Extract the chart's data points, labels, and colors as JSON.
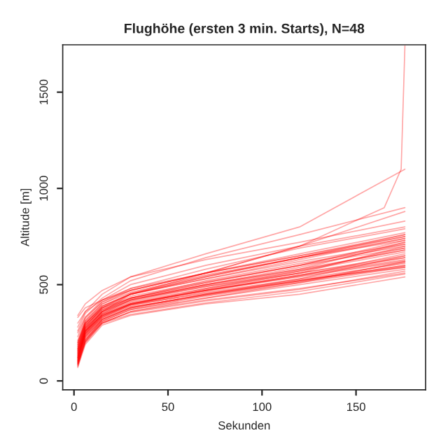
{
  "chart_data": {
    "type": "line",
    "title": "Flughöhe (ersten 3 min. Starts), N=48",
    "xlabel": "Sekunden",
    "ylabel": "Altitude [m]",
    "x": [
      2,
      6,
      15,
      30,
      70,
      120,
      176
    ],
    "xlim": [
      -6,
      187
    ],
    "xticks": [
      0,
      50,
      100,
      150
    ],
    "ylim": [
      -46,
      1746
    ],
    "yticks": [
      0,
      500,
      1000,
      1500
    ],
    "grid": false,
    "legend": false,
    "marker": "none",
    "line_style": "solid",
    "series": [
      {
        "color": "#ff0000",
        "values": [
          80,
          200,
          300,
          360,
          420,
          480,
          560
        ]
      },
      {
        "color": "#ff0000",
        "values": [
          100,
          230,
          320,
          380,
          450,
          520,
          600
        ]
      },
      {
        "color": "#ff0000",
        "values": [
          120,
          250,
          340,
          400,
          470,
          540,
          620
        ]
      },
      {
        "color": "#ff0000",
        "values": [
          90,
          210,
          310,
          370,
          440,
          510,
          590
        ]
      },
      {
        "color": "#ff0000",
        "values": [
          150,
          270,
          360,
          420,
          490,
          560,
          650
        ]
      },
      {
        "color": "#ff0000",
        "values": [
          330,
          380,
          420,
          470,
          560,
          650,
          760
        ]
      },
      {
        "color": "#ff0000",
        "values": [
          340,
          400,
          470,
          540,
          630,
          720,
          830
        ]
      },
      {
        "color": "#ff0000",
        "values": [
          200,
          300,
          380,
          430,
          500,
          580,
          680
        ]
      },
      {
        "color": "#ff0000",
        "values": [
          110,
          240,
          330,
          390,
          460,
          530,
          610
        ]
      },
      {
        "color": "#ff0000",
        "values": [
          70,
          190,
          290,
          340,
          400,
          450,
          540
        ]
      },
      {
        "color": "#ff0000",
        "values": [
          130,
          260,
          350,
          410,
          480,
          560,
          640
        ]
      },
      {
        "color": "#ff0000",
        "values": [
          180,
          290,
          370,
          430,
          520,
          610,
          700
        ]
      },
      {
        "color": "#ff0000",
        "values": [
          95,
          220,
          310,
          370,
          430,
          500,
          580
        ]
      },
      {
        "color": "#ff0000",
        "values": [
          160,
          280,
          380,
          450,
          540,
          640,
          730
        ]
      },
      {
        "color": "#ff0000",
        "values": [
          250,
          330,
          420,
          500,
          600,
          700,
          800
        ]
      },
      {
        "color": "#ff0000",
        "values": [
          140,
          260,
          340,
          400,
          470,
          550,
          630
        ]
      },
      {
        "color": "#ff0000",
        "values": [
          105,
          235,
          325,
          385,
          445,
          515,
          595
        ]
      },
      {
        "color": "#ff0000",
        "values": [
          170,
          300,
          390,
          450,
          530,
          620,
          710
        ]
      },
      {
        "color": "#ff0000",
        "values": [
          85,
          205,
          305,
          355,
          415,
          475,
          570
        ]
      },
      {
        "color": "#ff0000",
        "values": [
          190,
          310,
          400,
          470,
          560,
          650,
          750
        ]
      },
      {
        "color": "#ff0000",
        "values": [
          120,
          245,
          335,
          395,
          465,
          545,
          625
        ]
      },
      {
        "color": "#ff0000",
        "values": [
          300,
          360,
          420,
          480,
          560,
          700,
          880
        ]
      },
      {
        "color": "#ff0000",
        "values": [
          75,
          215,
          300,
          345,
          405,
          465,
          555
        ]
      },
      {
        "color": "#ff0000",
        "values": [
          210,
          320,
          410,
          480,
          580,
          690,
          790
        ]
      },
      {
        "color": "#ff0000",
        "values": [
          115,
          255,
          345,
          400,
          470,
          545,
          660
        ]
      },
      {
        "color": "#ff0000",
        "values": [
          135,
          265,
          355,
          415,
          490,
          570,
          670
        ]
      },
      {
        "color": "#ff0000",
        "values": [
          155,
          275,
          365,
          425,
          495,
          575,
          680
        ]
      },
      {
        "color": "#ff0000",
        "values": [
          165,
          285,
          375,
          440,
          515,
          600,
          690
        ]
      },
      {
        "color": "#ff0000",
        "values": [
          100,
          225,
          315,
          375,
          445,
          520,
          615
        ]
      },
      {
        "color": "#ff0000",
        "values": [
          145,
          270,
          360,
          420,
          500,
          580,
          720
        ]
      },
      {
        "color": "#ff0000",
        "values": [
          125,
          250,
          345,
          405,
          470,
          550,
          640
        ]
      },
      {
        "color": "#ff0000",
        "values": [
          180,
          295,
          385,
          455,
          545,
          640,
          740
        ]
      },
      {
        "color": "#ff0000",
        "values": [
          90,
          210,
          320,
          380,
          450,
          530,
          650
        ]
      },
      {
        "color": "#ff0000",
        "values": [
          110,
          240,
          330,
          395,
          475,
          560,
          700
        ]
      },
      {
        "color": "#ff0000",
        "values": [
          230,
          330,
          410,
          470,
          560,
          660,
          770
        ]
      },
      {
        "color": "#ff0000",
        "values": [
          200,
          310,
          400,
          460,
          550,
          640,
          760
        ]
      },
      {
        "color": "#ff0000",
        "values": [
          130,
          255,
          340,
          400,
          480,
          570,
          690
        ]
      },
      {
        "color": "#ff0000",
        "values": [
          150,
          275,
          360,
          430,
          510,
          600,
          730
        ]
      },
      {
        "color": "#ff0000",
        "values": [
          85,
          200,
          300,
          360,
          430,
          510,
          620
        ]
      },
      {
        "color": "#ff0000",
        "values": [
          170,
          290,
          380,
          450,
          530,
          630,
          740
        ]
      },
      {
        "color": "#ff0000",
        "values": [
          260,
          350,
          430,
          520,
          640,
          760,
          900
        ]
      },
      {
        "color": "#ff0000",
        "values": [
          280,
          360,
          450,
          540,
          660,
          800,
          1100
        ]
      },
      {
        "color": "#ff0000",
        "x": [
          2,
          6,
          15,
          30,
          70,
          120,
          165,
          174,
          176
        ],
        "values": [
          120,
          260,
          360,
          450,
          560,
          700,
          900,
          1100,
          1740
        ]
      },
      {
        "color": "#ff0000",
        "values": [
          95,
          230,
          320,
          380,
          450,
          520,
          600
        ]
      },
      {
        "color": "#ff0000",
        "values": [
          140,
          260,
          350,
          420,
          500,
          590,
          710
        ]
      },
      {
        "color": "#ff0000",
        "values": [
          105,
          245,
          335,
          395,
          455,
          525,
          590
        ]
      },
      {
        "color": "#ff0000",
        "values": [
          190,
          300,
          390,
          450,
          540,
          640,
          750
        ]
      },
      {
        "color": "#ff0000",
        "values": [
          160,
          280,
          370,
          430,
          510,
          600,
          720
        ]
      }
    ]
  }
}
